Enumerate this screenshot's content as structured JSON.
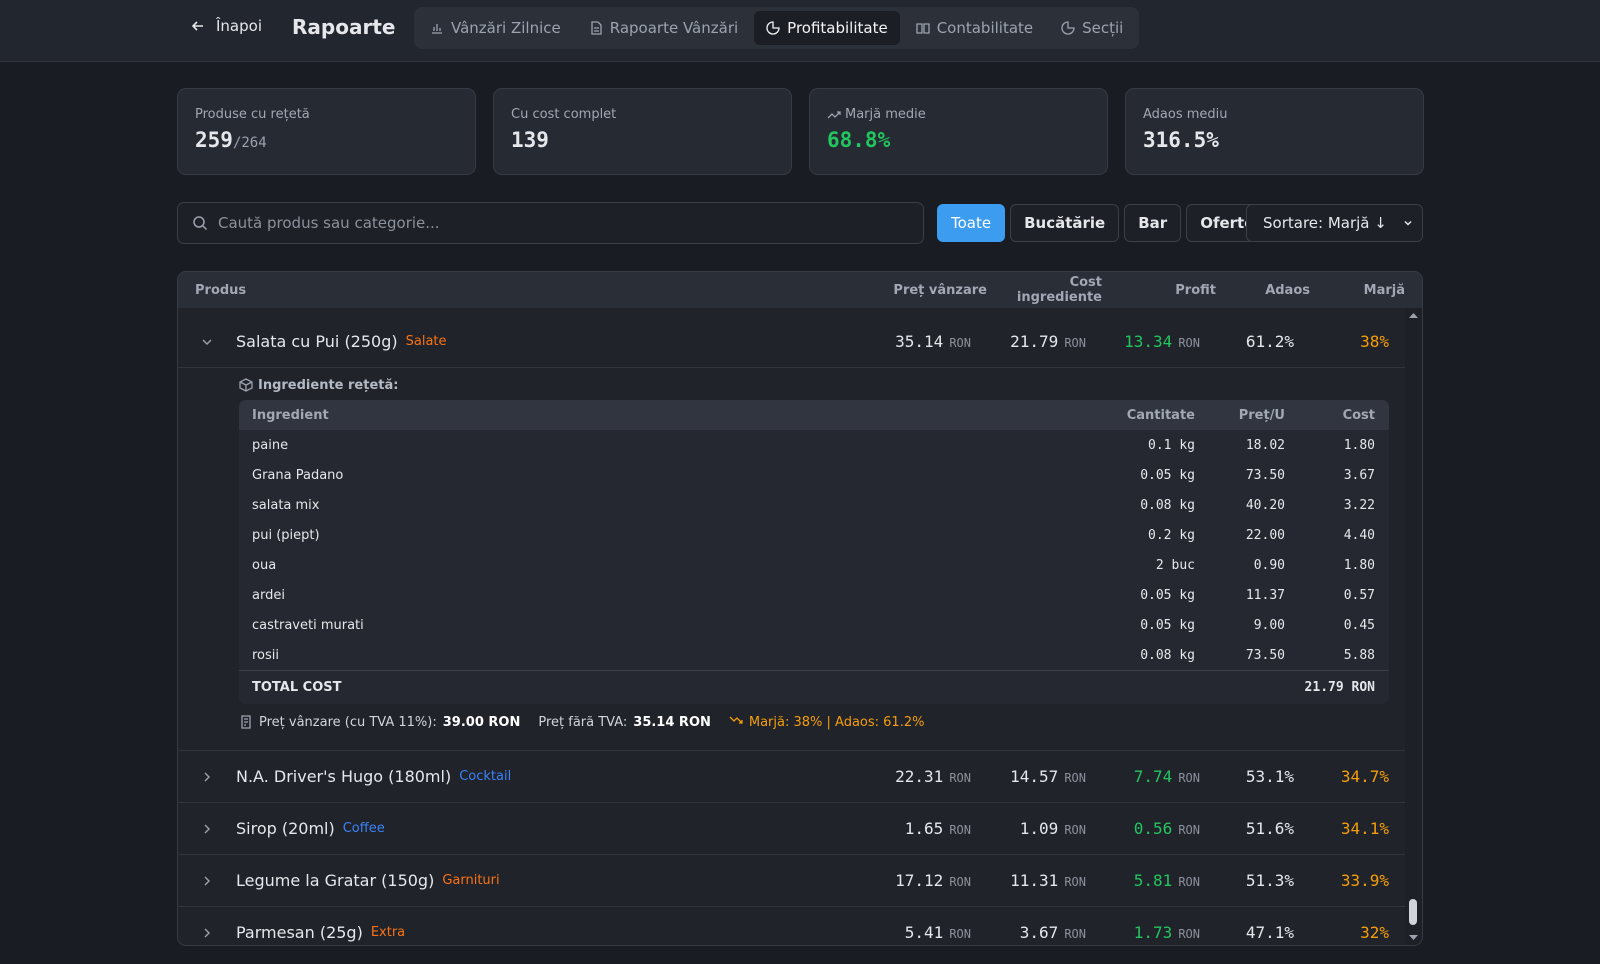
{
  "nav": {
    "back": "Înapoi",
    "title": "Rapoarte",
    "tabs": [
      "Vânzări Zilnice",
      "Rapoarte Vânzări",
      "Profitabilitate",
      "Contabilitate",
      "Secții"
    ],
    "active_tab": 2
  },
  "stats": [
    {
      "label": "Produse cu rețetă",
      "value": "259",
      "suffix": "/264"
    },
    {
      "label": "Cu cost complet",
      "value": "139"
    },
    {
      "label": "Marjă medie",
      "value": "68.8%",
      "color": "#22c55e"
    },
    {
      "label": "Adaos mediu",
      "value": "316.5%"
    }
  ],
  "search_placeholder": "Caută produs sau categorie...",
  "filters": [
    "Toate",
    "Bucătărie",
    "Bar",
    "Oferte"
  ],
  "active_filter": 0,
  "sort": "Sortare: Marjă ↓",
  "table": {
    "headers": [
      "Produs",
      "Preț vânzare",
      "Cost ingrediente",
      "Profit",
      "Adaos",
      "Marjă"
    ],
    "currency": "RON",
    "rows": [
      {
        "name": "Salata cu Pui (250g)",
        "category": "Salate",
        "category_color": "#f97316",
        "price": "35.14",
        "cost": "21.79",
        "profit": "13.34",
        "adaos": "61.2%",
        "marja": "38%",
        "expanded": true
      },
      {
        "name": "N.A. Driver's Hugo (180ml)",
        "category": "Cocktail",
        "category_color": "#3b82f6",
        "price": "22.31",
        "cost": "14.57",
        "profit": "7.74",
        "adaos": "53.1%",
        "marja": "34.7%"
      },
      {
        "name": "Sirop (20ml)",
        "category": "Coffee",
        "category_color": "#3b82f6",
        "price": "1.65",
        "cost": "1.09",
        "profit": "0.56",
        "adaos": "51.6%",
        "marja": "34.1%"
      },
      {
        "name": "Legume la Gratar (150g)",
        "category": "Garnituri",
        "category_color": "#f97316",
        "price": "17.12",
        "cost": "11.31",
        "profit": "5.81",
        "adaos": "51.3%",
        "marja": "33.9%"
      },
      {
        "name": "Parmesan (25g)",
        "category": "Extra",
        "category_color": "#f97316",
        "price": "5.41",
        "cost": "3.67",
        "profit": "1.73",
        "adaos": "47.1%",
        "marja": "32%"
      }
    ]
  },
  "details": {
    "title": "Ingrediente rețetă:",
    "headers": [
      "Ingredient",
      "Cantitate",
      "Preț/U",
      "Cost"
    ],
    "items": [
      [
        "paine",
        "0.1 kg",
        "18.02",
        "1.80"
      ],
      [
        "Grana Padano",
        "0.05 kg",
        "73.50",
        "3.67"
      ],
      [
        "salata mix",
        "0.08 kg",
        "40.20",
        "3.22"
      ],
      [
        "pui (piept)",
        "0.2 kg",
        "22.00",
        "4.40"
      ],
      [
        "oua",
        "2 buc",
        "0.90",
        "1.80"
      ],
      [
        "ardei",
        "0.05 kg",
        "11.37",
        "0.57"
      ],
      [
        "castraveti murati",
        "0.05 kg",
        "9.00",
        "0.45"
      ],
      [
        "rosii",
        "0.08 kg",
        "73.50",
        "5.88"
      ]
    ],
    "total_label": "TOTAL COST",
    "total": "21.79 RON",
    "footer": {
      "price_vat_label": "Preț vânzare (cu TVA 11%):",
      "price_vat": "39.00 RON",
      "price_novat_label": "Preț fără TVA:",
      "price_novat": "35.14 RON",
      "summary": "Marjă: 38% | Adaos: 61.2%"
    }
  }
}
